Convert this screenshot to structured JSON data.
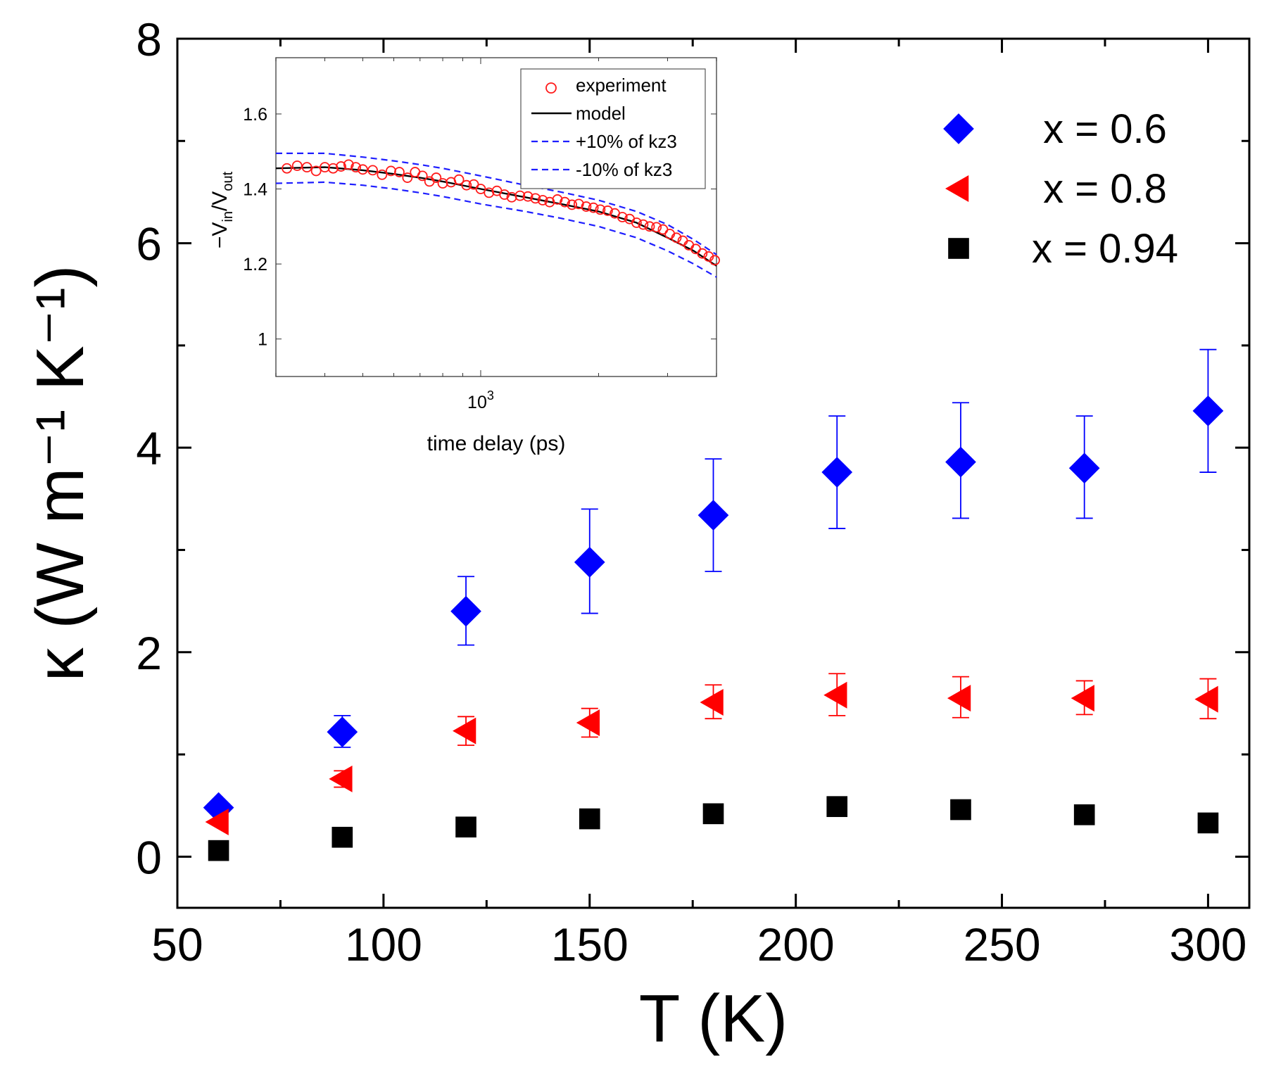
{
  "chart_data": [
    {
      "type": "scatter",
      "xlabel": "T (K)",
      "ylabel": "κ (W m⁻¹ K⁻¹)",
      "xlim": [
        50,
        310
      ],
      "ylim": [
        -0.5,
        8
      ],
      "xticks": [
        "50",
        "100",
        "150",
        "200",
        "250",
        "300"
      ],
      "yticks": [
        "0",
        "2",
        "4",
        "6",
        "8"
      ],
      "grid": false,
      "legend_position": "top-right",
      "series": [
        {
          "name": "x = 0.6",
          "marker": "diamond",
          "color": "#0000ff",
          "x": [
            60,
            90,
            120,
            150,
            180,
            210,
            240,
            270,
            300
          ],
          "y": [
            0.48,
            1.22,
            2.4,
            2.88,
            3.34,
            3.76,
            3.86,
            3.8,
            4.36
          ],
          "err_low": [
            0.48,
            1.07,
            2.07,
            2.38,
            2.79,
            3.21,
            3.31,
            3.31,
            3.76
          ],
          "err_high": [
            0.48,
            1.38,
            2.74,
            3.4,
            3.89,
            4.31,
            4.44,
            4.31,
            4.96
          ]
        },
        {
          "name": "x = 0.8",
          "marker": "triangle-left",
          "color": "#ff0000",
          "x": [
            60,
            90,
            120,
            150,
            180,
            210,
            240,
            270,
            300
          ],
          "y": [
            0.34,
            0.76,
            1.23,
            1.31,
            1.51,
            1.58,
            1.55,
            1.55,
            1.54
          ],
          "err_low": [
            0.34,
            0.68,
            1.09,
            1.17,
            1.35,
            1.38,
            1.36,
            1.39,
            1.35
          ],
          "err_high": [
            0.34,
            0.84,
            1.37,
            1.45,
            1.68,
            1.79,
            1.76,
            1.72,
            1.74
          ]
        },
        {
          "name": "x = 0.94",
          "marker": "square",
          "color": "#000000",
          "x": [
            60,
            90,
            120,
            150,
            180,
            210,
            240,
            270,
            300
          ],
          "y": [
            0.06,
            0.19,
            0.29,
            0.37,
            0.42,
            0.49,
            0.46,
            0.41,
            0.33
          ]
        }
      ]
    },
    {
      "type": "scatter",
      "title": "inset",
      "xlabel": "time delay (ps)",
      "ylabel": "−V_in/V_out",
      "xscale": "log",
      "xlim": [
        300,
        4000
      ],
      "ylim": [
        0.9,
        1.75
      ],
      "xticks": [
        "10^3"
      ],
      "yticks": [
        "1",
        "1.2",
        "1.4",
        "1.6"
      ],
      "legend_position": "top-right",
      "legend": [
        "experiment",
        "model",
        "+10% of kz3",
        "-10% of kz3"
      ],
      "experiment": {
        "x": [
          320,
          340,
          360,
          380,
          400,
          420,
          440,
          460,
          480,
          500,
          530,
          560,
          590,
          620,
          650,
          680,
          710,
          740,
          770,
          800,
          840,
          880,
          920,
          960,
          1000,
          1050,
          1100,
          1150,
          1200,
          1260,
          1320,
          1380,
          1440,
          1500,
          1570,
          1640,
          1710,
          1780,
          1860,
          1940,
          2020,
          2110,
          2200,
          2300,
          2400,
          2500,
          2600,
          2700,
          2810,
          2920,
          3040,
          3160,
          3280,
          3400,
          3540,
          3680,
          3820,
          3960
        ],
        "y": [
          1.455,
          1.462,
          1.458,
          1.448,
          1.458,
          1.455,
          1.46,
          1.465,
          1.458,
          1.452,
          1.45,
          1.438,
          1.448,
          1.445,
          1.43,
          1.445,
          1.435,
          1.42,
          1.43,
          1.415,
          1.418,
          1.425,
          1.41,
          1.412,
          1.4,
          1.39,
          1.395,
          1.385,
          1.378,
          1.382,
          1.38,
          1.375,
          1.37,
          1.365,
          1.372,
          1.365,
          1.358,
          1.36,
          1.353,
          1.35,
          1.345,
          1.342,
          1.335,
          1.325,
          1.32,
          1.31,
          1.305,
          1.3,
          1.298,
          1.292,
          1.28,
          1.27,
          1.262,
          1.25,
          1.24,
          1.228,
          1.22,
          1.21
        ]
      },
      "model": {
        "x": [
          300,
          400,
          500,
          600,
          700,
          800,
          1000,
          1300,
          1600,
          2000,
          2500,
          3000,
          3500,
          4000
        ],
        "y": [
          1.455,
          1.458,
          1.45,
          1.44,
          1.43,
          1.42,
          1.4,
          1.378,
          1.36,
          1.34,
          1.31,
          1.27,
          1.235,
          1.195
        ]
      },
      "plus10": {
        "x": [
          300,
          400,
          500,
          600,
          700,
          800,
          1000,
          1300,
          1600,
          2000,
          2500,
          3000,
          3500,
          4000
        ],
        "y": [
          1.495,
          1.495,
          1.485,
          1.475,
          1.465,
          1.455,
          1.435,
          1.41,
          1.392,
          1.37,
          1.34,
          1.305,
          1.265,
          1.225
        ]
      },
      "minus10": {
        "x": [
          300,
          400,
          500,
          600,
          700,
          800,
          1000,
          1300,
          1600,
          2000,
          2500,
          3000,
          3500,
          4000
        ],
        "y": [
          1.415,
          1.418,
          1.41,
          1.4,
          1.39,
          1.38,
          1.36,
          1.34,
          1.322,
          1.3,
          1.27,
          1.235,
          1.2,
          1.165
        ]
      }
    }
  ]
}
